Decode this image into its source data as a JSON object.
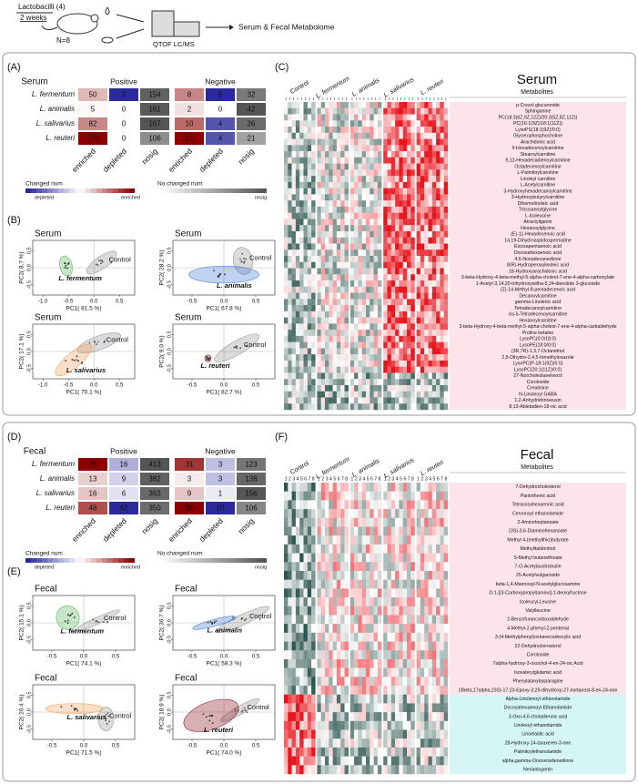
{
  "schematic": {
    "treatment": "Lactobacilli (4)",
    "duration": "2 weeks",
    "n": "N=8",
    "instrument": "QTOF LC/MS",
    "output": "Serum & Fecal Metabolome"
  },
  "panel_a": {
    "label": "(A)",
    "sample": "Serum",
    "groups": [
      "Positive",
      "Negative"
    ],
    "columns": [
      "enriched",
      "depleted",
      "nosig",
      "enriched",
      "depleted",
      "nosig"
    ],
    "rows": [
      {
        "name": "L. fermentum",
        "counts": [
          50,
          3,
          154,
          8,
          5,
          32
        ]
      },
      {
        "name": "L. animalis",
        "counts": [
          5,
          0,
          161,
          2,
          0,
          42
        ]
      },
      {
        "name": "L. salivarius",
        "counts": [
          82,
          0,
          167,
          10,
          4,
          36
        ]
      },
      {
        "name": "L. reuteri",
        "counts": [
          176,
          0,
          106,
          17,
          4,
          21
        ]
      }
    ],
    "legend": {
      "changed": "Changed num",
      "depleted": "depleted",
      "enriched": "enriched",
      "unchanged": "No changed num",
      "nosig": "nosig"
    }
  },
  "panel_b": {
    "label": "(B)",
    "plots": [
      {
        "title": "Serum",
        "group": "L. fermentum",
        "control": "Control",
        "color": "#5cb85c",
        "xlabel": "PC1( 81.5 %)",
        "ylabel": "PC2( 8.7 %)",
        "xlim": [
          -1.2,
          0.8
        ],
        "ylim": [
          -0.8,
          0.8
        ],
        "xticks": [
          {
            "value": -1,
            "label": "-1.0"
          },
          -0.5,
          {
            "value": 0,
            "label": "0.0"
          },
          0.5
        ],
        "yticks": [
          -0.5,
          {
            "value": 0,
            "label": "0.0"
          },
          0.5
        ]
      },
      {
        "title": "Serum",
        "group": "L. animalis",
        "control": "Control",
        "color": "#4a7fd6",
        "xlabel": "PC1( 67.8 %)",
        "ylabel": "PC2( 28.2 %)",
        "xlim": [
          -0.8,
          0.8
        ],
        "ylim": [
          -0.8,
          0.8
        ],
        "xticks": [
          -0.5,
          {
            "value": 0,
            "label": "0.0"
          },
          0.5
        ],
        "yticks": [
          -0.5,
          {
            "value": 0,
            "label": "0.0"
          },
          0.5
        ]
      },
      {
        "title": "Serum",
        "group": "L. salivarius",
        "control": "Control",
        "color": "#f4a460",
        "xlabel": "PC1( 70.1 %)",
        "ylabel": "PC2( 17.1 %)",
        "xlim": [
          -1.2,
          0.8
        ],
        "ylim": [
          -0.8,
          0.8
        ],
        "xticks": [
          {
            "value": -1,
            "label": "-1.0"
          },
          -0.5,
          {
            "value": 0,
            "label": "0.0"
          },
          0.5
        ],
        "yticks": [
          -0.5,
          {
            "value": 0,
            "label": "0.0"
          },
          0.5
        ]
      },
      {
        "title": "Serum",
        "group": "L. reuteri",
        "control": "Control",
        "color": "#8b1a2b",
        "xlabel": "PC1( 82.7 %)",
        "ylabel": "PC2( 9.0 %)",
        "xlim": [
          -0.8,
          0.8
        ],
        "ylim": [
          -0.8,
          0.8
        ],
        "xticks": [
          -0.5,
          {
            "value": 0,
            "label": "0.0"
          },
          0.5
        ],
        "yticks": [
          -0.5,
          {
            "value": 0,
            "label": "0.0"
          },
          0.5
        ]
      }
    ]
  },
  "panel_c": {
    "label": "(C)",
    "title": "Serum",
    "subtitle": "Metabolites",
    "groups": [
      "Control",
      "L. fermentum",
      "L. animalis",
      "L. salivarius",
      "L. reuteri"
    ],
    "metabolites": [
      "p-Cresol glucuronide",
      "Sphinganine",
      "PC(18:3(6Z,9Z,12Z)/20:3(5Z,8Z,11Z))",
      "PC(16:1(9Z)/18:1(11Z))",
      "LysoPS(18:1(9Z)/0:0)",
      "Glycerophosphocholine",
      "Arachidonic acid",
      "9-Hexadecenoylcarnitine",
      "Stearoylcarnitine",
      "9,12-Hexadecadienoylcarnitine",
      "Octadecenoylcarnitine",
      "L-Palmitoylcarnitine",
      "Linoleyl carnitine",
      "L-Acetylcarnitine",
      "3-Hydroxyhexadecanoylcarnitine",
      "3-Hydroxybutyrylcarnitine",
      "Dihomolinoleic acid",
      "Tricosanoylglycine",
      "L-Isoleucine",
      "Atractyligenin",
      "Hexanoylglycine",
      "(E)-11-Hexadecenoic acid",
      "14,19-Dihydroaspidospermatine",
      "Eicosapentaenoic acid",
      "Docosahexaenoic acid",
      "4,6-Nonadecanedione",
      "8(R)-Hydroperoxylinoleic acid",
      "18-Hydroxyarachidonic acid",
      "3-beta-Hydroxy-4-beta-methyl-5-alpha-cholest-7-ene-4-alpha-carboxylate",
      "1-Acetyl-3,14,20-trihydroxywitha-5,24-dienolide 3-glucoside",
      "(Z)-14-Methyl-8-pentadecenoic acid",
      "Decanoylcarnitine",
      "gamma-Linolenic acid",
      "Tetradecanoylcarnitine",
      "cis-5-Tetradecenoylcarnitine",
      "Hexanoylcarnitine",
      "3-beta-Hydroxy-4-beta-methyl-5-alpha-cholest-7-ene-4-alpha-carbaldehyde",
      "Proline betaine",
      "LysoPC(0:0/18:0)",
      "LysoPE(18:0/0:0)",
      "(3R,7R)-1,3,7-Octanetriol",
      "2,5-Dihydro-2,4,5-trimethyloxazole",
      "LysoPC(P-18:1(9Z)/0:0)",
      "LysoPC(20:1(11Z)/0:0)",
      "27-Norcholestanehexol",
      "Coroloside",
      "Creatinine",
      "N-Linoleoyl GABA",
      "1,2-Anhydridoniveusin",
      "8,13-Abietadien-18-oic acid"
    ]
  },
  "panel_d": {
    "label": "(D)",
    "sample": "Fecal",
    "groups": [
      "Positive",
      "Negative"
    ],
    "columns": [
      "enriched",
      "depleted",
      "nosig",
      "enriched",
      "depleted",
      "nosig"
    ],
    "rows": [
      {
        "name": "L. fermentum",
        "counts": [
          70,
          16,
          413,
          31,
          3,
          123
        ]
      },
      {
        "name": "L. animalis",
        "counts": [
          13,
          9,
          382,
          3,
          3,
          138
        ]
      },
      {
        "name": "L. salivarius",
        "counts": [
          16,
          6,
          363,
          9,
          1,
          156
        ]
      },
      {
        "name": "L. reuteri",
        "counts": [
          48,
          42,
          350,
          39,
          10,
          106
        ]
      }
    ],
    "legend": {
      "changed": "Changed num",
      "depleted": "depleted",
      "enriched": "enriched",
      "unchanged": "No changed num",
      "nosig": "nosig"
    }
  },
  "panel_e": {
    "label": "(E)",
    "plots": [
      {
        "title": "Fecal",
        "group": "L. fermentum",
        "control": "Control",
        "color": "#5cb85c",
        "xlabel": "PC1( 74.1 %)",
        "ylabel": "PC2( 15.1 %)",
        "xlim": [
          -0.8,
          0.8
        ],
        "ylim": [
          -0.8,
          0.8
        ],
        "xticks": [
          -0.5,
          {
            "value": 0,
            "label": "0.0"
          },
          0.5
        ],
        "yticks": [
          -0.5,
          {
            "value": 0,
            "label": "0.0"
          },
          0.5
        ]
      },
      {
        "title": "Fecal",
        "group": "L. animalis",
        "control": "Control",
        "color": "#4a7fd6",
        "xlabel": "PC1( 58.3 %)",
        "ylabel": "PC2( 36.7 %)",
        "xlim": [
          -0.8,
          0.8
        ],
        "ylim": [
          -0.8,
          0.8
        ],
        "xticks": [
          -0.5,
          {
            "value": 0,
            "label": "0.0"
          },
          0.5
        ],
        "yticks": [
          -0.5,
          {
            "value": 0,
            "label": "0.0"
          },
          0.5
        ]
      },
      {
        "title": "Fecal",
        "group": "L. salivarius",
        "control": "Control",
        "color": "#f4a460",
        "xlabel": "PC1( 71.5 %)",
        "ylabel": "PC2( 20.4 %)",
        "xlim": [
          -0.8,
          0.8
        ],
        "ylim": [
          -0.8,
          0.8
        ],
        "xticks": [
          -0.5,
          {
            "value": 0,
            "label": "0.0"
          },
          0.5
        ],
        "yticks": [
          -0.5,
          {
            "value": 0,
            "label": "0.0"
          },
          0.5
        ]
      },
      {
        "title": "Fecal",
        "group": "L. reuteri",
        "control": "Control",
        "color": "#8b1a2b",
        "xlabel": "PC1( 74.0 %)",
        "ylabel": "PC2( 18.9 %)",
        "xlim": [
          -0.8,
          0.8
        ],
        "ylim": [
          -0.8,
          0.8
        ],
        "xticks": [
          -0.5,
          {
            "value": 0,
            "label": "0.0"
          },
          0.5
        ],
        "yticks": [
          -0.5,
          {
            "value": 0,
            "label": "0.0"
          },
          0.5
        ]
      }
    ]
  },
  "panel_f": {
    "label": "(F)",
    "title": "Fecal",
    "subtitle": "Metabolites",
    "groups": [
      "Control",
      "L. fermentum",
      "L. animalis",
      "L. salivarius",
      "L. reuteri"
    ],
    "replicates": [
      1,
      2,
      3,
      4,
      5,
      6,
      7,
      8
    ],
    "upper_metabolites": [
      "7-Dehydrocholesterol",
      "Pantothenic acid",
      "Tetracosahexaenoic acid",
      "Cervonoyl ethanolamide",
      "2-Aminoheptanoate",
      "(3S)-3,6-Diaminohexanoate",
      "Methyl 4-(methylthio)butyrate",
      "Methylitaldonitrol",
      "S-Methyl butanethioate",
      "7-O-Acetylaustroinulin",
      "25-Acetylvulgaroside",
      "beta-1,4-Mannosyl-N-acetylglucosamine",
      "D-1-[(3-Carboxypropyl)amino]-1-deoxyfructose",
      "Isoleucyl-Leucine",
      "Valylleucine",
      "2-Benzofurancarboxaldehyde",
      "4-Methyl-2-phenyl-2-pentenal",
      "3-(4-Methylphenyl)oxiranecarboxylic acid",
      "22-Dehydroclerosterol",
      "Coroloside",
      "7alpha-hydroxy-3-oxochol-4-en-24-oic Acid",
      "Isovalerylglutamic acid",
      "Phenylalanylasparagine",
      "(3beta,17alpha,23S)-17,23-Epoxy-3,29-dihydroxy-27-nortanost-8-en-24-one"
    ],
    "lower_metabolites": [
      "Alpha-Linolenoyl ethanolamide",
      "Docosahexaenoyl Ethanolamide",
      "3-Oxo-4,6-choladienoic acid",
      "Linoleoyl ethanolamide",
      "Linoelaidic acid",
      "28-Hydroxy-14-taraxeren-3-one",
      "Palmitoylethanolamide",
      "alpha,gamma-Onoceradienedione",
      "Nerianlogenin"
    ]
  }
}
